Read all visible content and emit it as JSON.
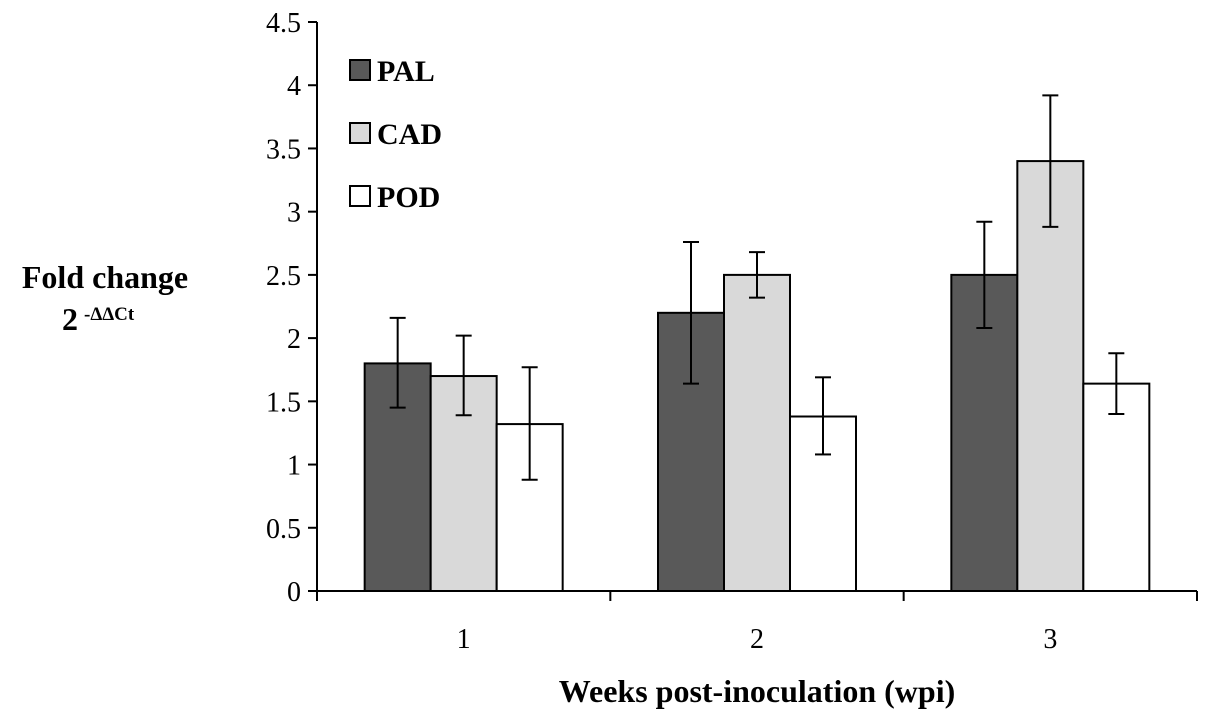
{
  "chart_data": {
    "type": "bar",
    "title": "",
    "xlabel": "Weeks post-inoculation (wpi)",
    "ylabel": "Fold change",
    "ylabel_line2_base": "2",
    "ylabel_line2_sup": "-ΔΔCt",
    "categories": [
      "1",
      "2",
      "3"
    ],
    "ylim": [
      0,
      4.5
    ],
    "yticks": [
      0,
      0.5,
      1,
      1.5,
      2,
      2.5,
      3,
      3.5,
      4,
      4.5
    ],
    "ytick_labels": [
      "0",
      "0.5",
      "1",
      "1.5",
      "2",
      "2.5",
      "3",
      "3.5",
      "4",
      "4.5"
    ],
    "grid": false,
    "legend_position": "top-left",
    "series": [
      {
        "name": "PAL",
        "color": "#595959",
        "values": [
          1.8,
          2.2,
          2.5
        ],
        "error_low": [
          1.45,
          1.64,
          2.08
        ],
        "error_high": [
          2.16,
          2.76,
          2.92
        ]
      },
      {
        "name": "CAD",
        "color": "#d9d9d9",
        "values": [
          1.7,
          2.5,
          3.4
        ],
        "error_low": [
          1.39,
          2.32,
          2.88
        ],
        "error_high": [
          2.02,
          2.68,
          3.92
        ]
      },
      {
        "name": "POD",
        "color": "#ffffff",
        "values": [
          1.32,
          1.38,
          1.64
        ],
        "error_low": [
          0.88,
          1.08,
          1.4
        ],
        "error_high": [
          1.77,
          1.69,
          1.88
        ]
      }
    ]
  }
}
